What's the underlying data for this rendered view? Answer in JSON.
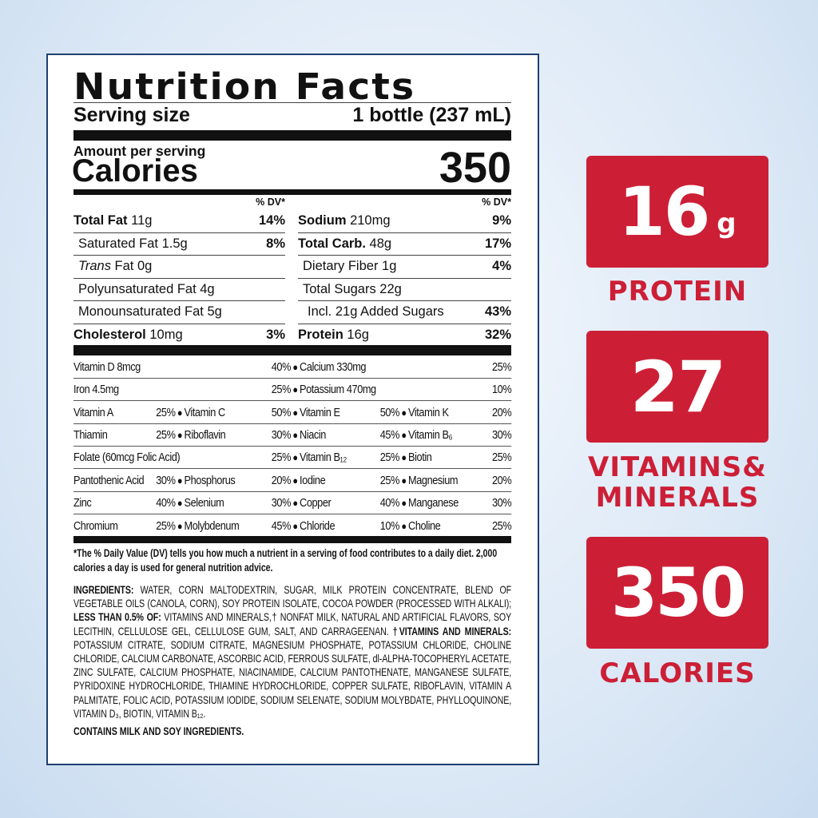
{
  "label": {
    "title": "Nutrition Facts",
    "serving_label": "Serving size",
    "serving_value": "1 bottle (237 mL)",
    "amount_label": "Amount per serving",
    "calories_label": "Calories",
    "calories_value": "350",
    "dv_header": "% DV*",
    "left": [
      {
        "name": "Total Fat",
        "amount": "11g",
        "pct": "14%",
        "bold": true,
        "indent": 0
      },
      {
        "name": "Saturated Fat",
        "amount": "1.5g",
        "pct": "8%",
        "bold": false,
        "indent": 1
      },
      {
        "name": "Trans",
        "name2": "Fat",
        "amount": "0g",
        "pct": "",
        "bold": false,
        "indent": 1,
        "italic": true
      },
      {
        "name": "Polyunsaturated Fat",
        "amount": "4g",
        "pct": "",
        "bold": false,
        "indent": 1
      },
      {
        "name": "Monounsaturated Fat",
        "amount": "5g",
        "pct": "",
        "bold": false,
        "indent": 1
      },
      {
        "name": "Cholesterol",
        "amount": "10mg",
        "pct": "3%",
        "bold": true,
        "indent": 0
      }
    ],
    "right": [
      {
        "name": "Sodium",
        "amount": "210mg",
        "pct": "9%",
        "bold": true,
        "indent": 0
      },
      {
        "name": "Total Carb.",
        "amount": "48g",
        "pct": "17%",
        "bold": true,
        "indent": 0
      },
      {
        "name": "Dietary Fiber",
        "amount": "1g",
        "pct": "4%",
        "bold": false,
        "indent": 1
      },
      {
        "name": "Total Sugars",
        "amount": "22g",
        "pct": "",
        "bold": false,
        "indent": 1
      },
      {
        "name": "Incl. 21g Added Sugars",
        "amount": "",
        "pct": "43%",
        "bold": false,
        "indent": 2
      },
      {
        "name": "Protein",
        "amount": "16g",
        "pct": "32%",
        "bold": true,
        "indent": 0
      }
    ],
    "vitamins": [
      [
        {
          "name": "Vitamin D 8mcg",
          "pct": "40%",
          "span": 2
        },
        {
          "name": "Calcium 330mg",
          "pct": "25%",
          "span": 2
        }
      ],
      [
        {
          "name": "Iron 4.5mg",
          "pct": "25%",
          "span": 2
        },
        {
          "name": "Potassium 470mg",
          "pct": "10%",
          "span": 2
        }
      ],
      [
        {
          "name": "Vitamin A",
          "pct": "25%",
          "span": 1
        },
        {
          "name": "Vitamin C",
          "pct": "50%",
          "span": 1
        },
        {
          "name": "Vitamin E",
          "pct": "50%",
          "span": 1
        },
        {
          "name": "Vitamin K",
          "pct": "20%",
          "span": 1
        }
      ],
      [
        {
          "name": "Thiamin",
          "pct": "25%",
          "span": 1
        },
        {
          "name": "Riboflavin",
          "pct": "30%",
          "span": 1
        },
        {
          "name": "Niacin",
          "pct": "45%",
          "span": 1
        },
        {
          "name": "Vitamin B₆",
          "pct": "30%",
          "span": 1
        }
      ],
      [
        {
          "name": "Folate (60mcg Folic Acid)",
          "pct": "25%",
          "span": 2
        },
        {
          "name": "Vitamin B₁₂",
          "pct": "25%",
          "span": 1
        },
        {
          "name": "Biotin",
          "pct": "25%",
          "span": 1
        }
      ],
      [
        {
          "name": "Pantothenic Acid",
          "pct": "30%",
          "span": 1
        },
        {
          "name": "Phosphorus",
          "pct": "20%",
          "span": 1
        },
        {
          "name": "Iodine",
          "pct": "25%",
          "span": 1
        },
        {
          "name": "Magnesium",
          "pct": "20%",
          "span": 1
        }
      ],
      [
        {
          "name": "Zinc",
          "pct": "40%",
          "span": 1
        },
        {
          "name": "Selenium",
          "pct": "30%",
          "span": 1
        },
        {
          "name": "Copper",
          "pct": "40%",
          "span": 1
        },
        {
          "name": "Manganese",
          "pct": "30%",
          "span": 1
        }
      ],
      [
        {
          "name": "Chromium",
          "pct": "25%",
          "span": 1
        },
        {
          "name": "Molybdenum",
          "pct": "45%",
          "span": 1
        },
        {
          "name": "Chloride",
          "pct": "10%",
          "span": 1
        },
        {
          "name": "Choline",
          "pct": "25%",
          "span": 1
        }
      ]
    ],
    "footnote": "*The % Daily Value (DV) tells you how much a nutrient in a serving of food contributes to a daily diet. 2,000 calories a day is used for general nutrition advice.",
    "ingredients": [
      {
        "text": "INGREDIENTS:",
        "bold": true
      },
      {
        "text": " WATER, CORN MALTODEXTRIN, SUGAR, MILK PROTEIN CONCENTRATE, BLEND OF VEGETABLE OILS (CANOLA, CORN), SOY PROTEIN ISOLATE, COCOA POWDER (PROCESSED WITH ALKALI); ",
        "bold": false
      },
      {
        "text": "LESS THAN 0.5% OF:",
        "bold": true
      },
      {
        "text": " VITAMINS AND MINERALS,† NONFAT MILK, NATURAL AND ARTIFICIAL FLAVORS, SOY LECITHIN, CELLULOSE GEL, CELLULOSE GUM, SALT, AND CARRAGEENAN. ",
        "bold": false
      },
      {
        "text": "†VITAMINS AND MINERALS:",
        "bold": true
      },
      {
        "text": " POTASSIUM CITRATE, SODIUM CITRATE, MAGNESIUM PHOSPHATE, POTASSIUM CHLORIDE, CHOLINE CHLORIDE, CALCIUM CARBONATE, ASCORBIC ACID, FERROUS SULFATE, dl-ALPHA-TOCOPHERYL ACETATE, ZINC SULFATE, CALCIUM PHOSPHATE, NIACINAMIDE, CALCIUM PANTOTHENATE, MANGANESE SULFATE, PYRIDOXINE HYDROCHLORIDE, THIAMINE HYDROCHLORIDE, COPPER SULFATE, RIBOFLAVIN, VITAMIN A PALMITATE, FOLIC ACID, POTASSIUM IODIDE, SODIUM SELENATE, SODIUM MOLYBDATE, PHYLLOQUINONE, VITAMIN D₃, BIOTIN, VITAMIN B₁₂.",
        "bold": false
      }
    ],
    "contains": "CONTAINS MILK AND SOY INGREDIENTS."
  },
  "highlights": [
    {
      "value": "16",
      "unit": "g",
      "label": "PROTEIN"
    },
    {
      "value": "27",
      "unit": "",
      "label": "VITAMINS&",
      "label2": "MINERALS"
    },
    {
      "value": "350",
      "unit": "",
      "label": "CALORIES"
    }
  ],
  "colors": {
    "accent": "#cc1f36",
    "panel_border": "#1f3f70"
  }
}
